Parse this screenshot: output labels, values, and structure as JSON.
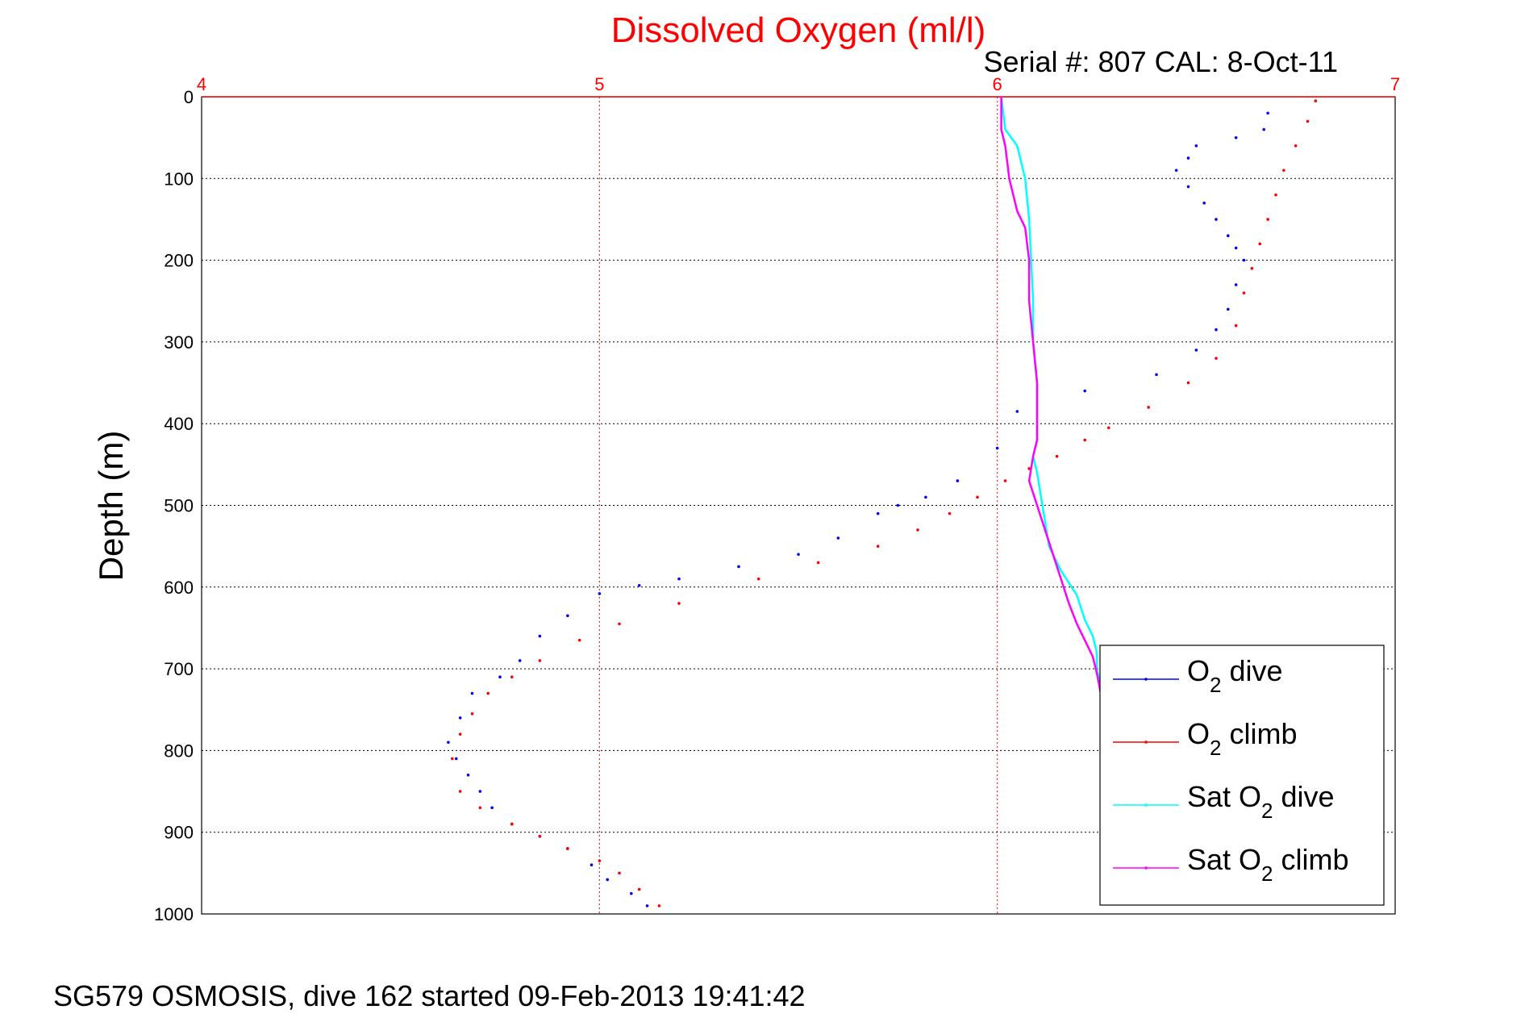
{
  "chart_data": {
    "type": "line",
    "title": "Dissolved Oxygen (ml/l)",
    "subtitle": "Serial #: 807  CAL: 8-Oct-11",
    "ylabel": "Depth (m)",
    "footer": "SG579 OSMOSIS, dive 162 started 09-Feb-2013 19:41:42",
    "xlim": [
      4,
      7
    ],
    "ylim": [
      0,
      1000
    ],
    "y_reversed": true,
    "x_axis_position": "top",
    "grid": true,
    "x_ticks": [
      "4",
      "5",
      "6",
      "7"
    ],
    "y_ticks": [
      "0",
      "100",
      "200",
      "300",
      "400",
      "500",
      "600",
      "700",
      "800",
      "900",
      "1000"
    ],
    "legend_position": "bottom-right",
    "series": [
      {
        "name": "O2 dive",
        "legend_main": "O",
        "legend_sub": "2",
        "legend_rest": " dive",
        "color": "#0000ff",
        "style": "dots",
        "x": [
          6.68,
          6.67,
          6.6,
          6.5,
          6.48,
          6.45,
          6.48,
          6.52,
          6.55,
          6.58,
          6.6,
          6.62,
          6.6,
          6.58,
          6.55,
          6.5,
          6.4,
          6.22,
          6.05,
          6.0,
          5.9,
          5.82,
          5.75,
          5.7,
          5.6,
          5.5,
          5.35,
          5.2,
          5.1,
          5.0,
          4.92,
          4.85,
          4.8,
          4.75,
          4.68,
          4.65,
          4.62,
          4.64,
          4.67,
          4.7,
          4.73,
          4.78,
          4.85,
          4.92,
          4.98,
          5.02,
          5.08,
          5.12
        ],
        "y": [
          20,
          40,
          50,
          60,
          75,
          90,
          110,
          130,
          150,
          170,
          185,
          200,
          230,
          260,
          285,
          310,
          340,
          360,
          385,
          430,
          470,
          490,
          500,
          510,
          540,
          560,
          575,
          590,
          598,
          608,
          635,
          660,
          690,
          710,
          730,
          760,
          790,
          810,
          830,
          850,
          870,
          890,
          905,
          920,
          940,
          958,
          975,
          990
        ]
      },
      {
        "name": "O2 climb",
        "legend_main": "O",
        "legend_sub": "2",
        "legend_rest": " climb",
        "color": "#ff0000",
        "style": "dots",
        "x": [
          6.8,
          6.78,
          6.75,
          6.72,
          6.7,
          6.68,
          6.66,
          6.64,
          6.62,
          6.6,
          6.55,
          6.48,
          6.38,
          6.28,
          6.22,
          6.15,
          6.08,
          6.02,
          5.95,
          5.88,
          5.8,
          5.7,
          5.55,
          5.4,
          5.2,
          5.05,
          4.95,
          4.85,
          4.78,
          4.72,
          4.68,
          4.65,
          4.63,
          4.65,
          4.7,
          4.78,
          4.85,
          4.92,
          5.0,
          5.05,
          5.1,
          5.15
        ],
        "y": [
          5,
          30,
          60,
          90,
          120,
          150,
          180,
          210,
          240,
          280,
          320,
          350,
          380,
          405,
          420,
          440,
          455,
          470,
          490,
          510,
          530,
          550,
          570,
          590,
          620,
          645,
          665,
          690,
          710,
          730,
          755,
          780,
          810,
          850,
          870,
          890,
          905,
          920,
          935,
          950,
          970,
          990
        ]
      },
      {
        "name": "Sat O2 dive",
        "legend_main": "Sat O",
        "legend_sub": "2",
        "legend_rest": " dive",
        "color": "#00ffff",
        "style": "line",
        "x": [
          6.01,
          6.02,
          6.05,
          6.06,
          6.07,
          6.08,
          6.085,
          6.09,
          6.09,
          6.1,
          6.1,
          6.1,
          6.1,
          6.09,
          6.1,
          6.11,
          6.12,
          6.13,
          6.16,
          6.2,
          6.22,
          6.24,
          6.25,
          6.25,
          6.26
        ],
        "y": [
          0,
          40,
          60,
          80,
          100,
          150,
          200,
          250,
          300,
          350,
          380,
          400,
          420,
          440,
          460,
          490,
          520,
          550,
          580,
          610,
          640,
          660,
          680,
          700,
          720
        ]
      },
      {
        "name": "Sat O2 climb",
        "legend_main": "Sat O",
        "legend_sub": "2",
        "legend_rest": " climb",
        "color": "#ff00ff",
        "style": "line",
        "x": [
          6.01,
          6.01,
          6.02,
          6.03,
          6.05,
          6.07,
          6.08,
          6.08,
          6.09,
          6.1,
          6.1,
          6.1,
          6.1,
          6.09,
          6.08,
          6.1,
          6.12,
          6.14,
          6.16,
          6.18,
          6.2,
          6.22,
          6.24,
          6.25,
          6.26
        ],
        "y": [
          0,
          40,
          60,
          100,
          140,
          160,
          200,
          250,
          300,
          350,
          380,
          400,
          420,
          440,
          470,
          500,
          530,
          560,
          590,
          620,
          645,
          665,
          685,
          705,
          730
        ]
      }
    ]
  }
}
